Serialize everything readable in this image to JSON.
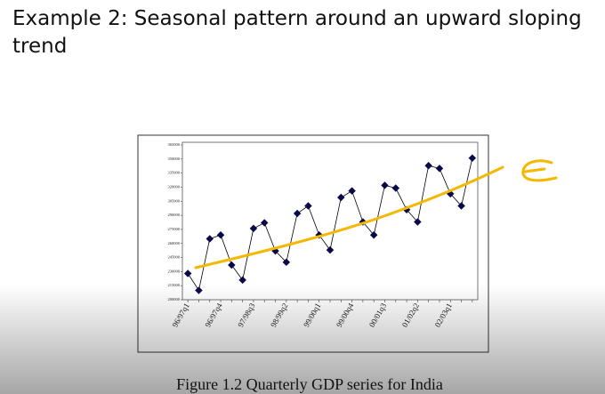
{
  "slide_title": "Example 2: Seasonal pattern around an upward sloping trend",
  "caption": "Figure 1.2 Quarterly GDP series for India",
  "chart_data": {
    "type": "line",
    "categories": [
      "96/97q1",
      null,
      null,
      "96/97q4",
      null,
      null,
      "97/98q3",
      null,
      null,
      "98/99q2",
      null,
      null,
      "99/00q1",
      null,
      null,
      "99/00q4",
      null,
      null,
      "00/01q3",
      null,
      null,
      "01/02q2",
      null,
      null,
      "02/03q1",
      null,
      null
    ],
    "series": [
      {
        "name": "GDP",
        "color": "#0a0a4a",
        "values": [
          228000,
          210000,
          265000,
          269000,
          237000,
          221000,
          276000,
          282000,
          252000,
          240000,
          292000,
          300000,
          269000,
          253000,
          309000,
          316000,
          283000,
          269000,
          322000,
          319000,
          296000,
          283000,
          343000,
          340000,
          313000,
          300000,
          351000
        ]
      }
    ],
    "ylim": [
      200000,
      365000
    ],
    "yticks": [
      200000,
      215000,
      230000,
      245000,
      260000,
      275000,
      290000,
      305000,
      320000,
      335000,
      350000,
      365000
    ]
  }
}
